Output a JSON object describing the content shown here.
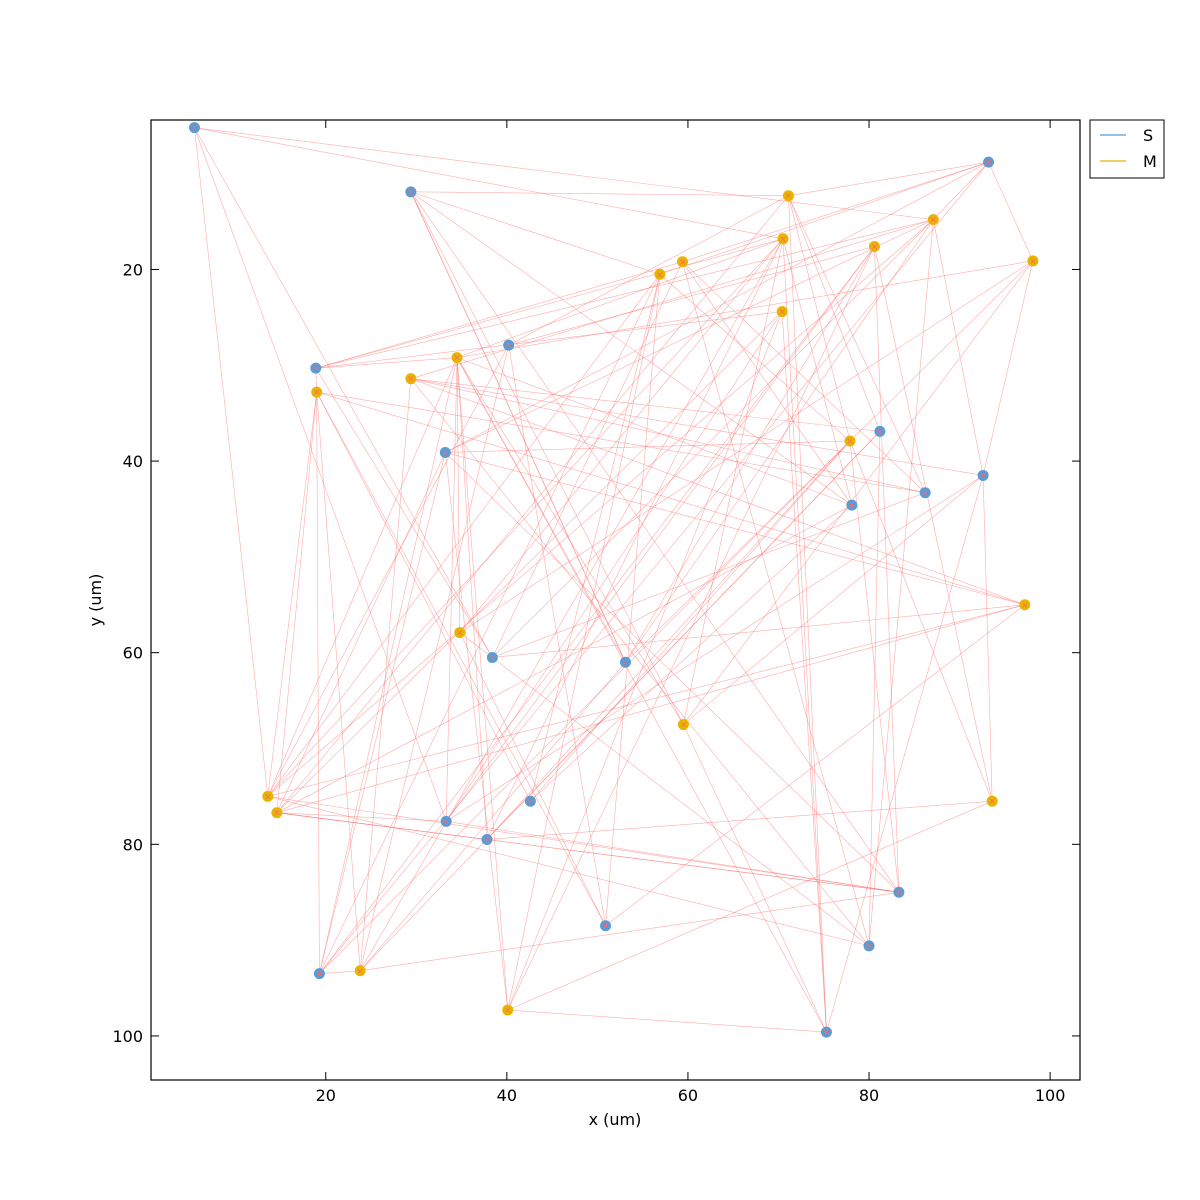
{
  "chart_data": {
    "type": "scatter",
    "title": "",
    "xlabel": "x (um)",
    "ylabel": "y (um)",
    "xlim": [
      0.7,
      103.3
    ],
    "ylim": [
      4.4,
      104.6
    ],
    "y_inverted": true,
    "x_ticks": [
      20,
      40,
      60,
      80,
      100
    ],
    "y_ticks": [
      20,
      40,
      60,
      80,
      100
    ],
    "grid": false,
    "legend_position": "outside-top-right",
    "series": [
      {
        "name": "S",
        "color": "#5b9bd5",
        "points": [
          {
            "id": "s1",
            "x": 5.5,
            "y": 5.2
          },
          {
            "id": "s2",
            "x": 29.4,
            "y": 11.9
          },
          {
            "id": "s3",
            "x": 93.2,
            "y": 8.8
          },
          {
            "id": "s4",
            "x": 18.9,
            "y": 30.3
          },
          {
            "id": "s5",
            "x": 40.2,
            "y": 27.9
          },
          {
            "id": "s6",
            "x": 33.2,
            "y": 39.1
          },
          {
            "id": "s7",
            "x": 81.2,
            "y": 36.9
          },
          {
            "id": "s8",
            "x": 78.1,
            "y": 44.6
          },
          {
            "id": "s9",
            "x": 86.2,
            "y": 43.3
          },
          {
            "id": "s10",
            "x": 92.6,
            "y": 41.5
          },
          {
            "id": "s11",
            "x": 38.4,
            "y": 60.5
          },
          {
            "id": "s12",
            "x": 53.1,
            "y": 61.0
          },
          {
            "id": "s13",
            "x": 42.6,
            "y": 75.5
          },
          {
            "id": "s14",
            "x": 33.3,
            "y": 77.6
          },
          {
            "id": "s15",
            "x": 37.8,
            "y": 79.5
          },
          {
            "id": "s16",
            "x": 83.3,
            "y": 85.0
          },
          {
            "id": "s17",
            "x": 50.9,
            "y": 88.5
          },
          {
            "id": "s18",
            "x": 80.0,
            "y": 90.6
          },
          {
            "id": "s19",
            "x": 19.3,
            "y": 93.5
          },
          {
            "id": "s20",
            "x": 75.3,
            "y": 99.6
          }
        ]
      },
      {
        "name": "M",
        "color": "#e8b400",
        "points": [
          {
            "id": "m1",
            "x": 71.1,
            "y": 12.3
          },
          {
            "id": "m2",
            "x": 87.1,
            "y": 14.8
          },
          {
            "id": "m3",
            "x": 70.5,
            "y": 16.8
          },
          {
            "id": "m4",
            "x": 80.6,
            "y": 17.6
          },
          {
            "id": "m5",
            "x": 98.1,
            "y": 19.1
          },
          {
            "id": "m6",
            "x": 59.4,
            "y": 19.2
          },
          {
            "id": "m7",
            "x": 56.9,
            "y": 20.5
          },
          {
            "id": "m8",
            "x": 70.4,
            "y": 24.4
          },
          {
            "id": "m9",
            "x": 34.5,
            "y": 29.2
          },
          {
            "id": "m10",
            "x": 29.4,
            "y": 31.4
          },
          {
            "id": "m11",
            "x": 19.0,
            "y": 32.8
          },
          {
            "id": "m12",
            "x": 77.9,
            "y": 37.9
          },
          {
            "id": "m13",
            "x": 97.2,
            "y": 55.0
          },
          {
            "id": "m14",
            "x": 34.8,
            "y": 57.9
          },
          {
            "id": "m15",
            "x": 59.5,
            "y": 67.5
          },
          {
            "id": "m16",
            "x": 13.6,
            "y": 75.0
          },
          {
            "id": "m17",
            "x": 14.6,
            "y": 76.7
          },
          {
            "id": "m18",
            "x": 93.6,
            "y": 75.5
          },
          {
            "id": "m19",
            "x": 23.8,
            "y": 93.2
          },
          {
            "id": "m20",
            "x": 40.1,
            "y": 97.3
          }
        ]
      }
    ],
    "connections": {
      "color": "#ff6666",
      "edges": [
        [
          "s1",
          "m3"
        ],
        [
          "s1",
          "s11"
        ],
        [
          "s1",
          "m16"
        ],
        [
          "s1",
          "s14"
        ],
        [
          "s1",
          "m2"
        ],
        [
          "s2",
          "m7"
        ],
        [
          "s2",
          "s8"
        ],
        [
          "s2",
          "m15"
        ],
        [
          "s2",
          "s16"
        ],
        [
          "s2",
          "s12"
        ],
        [
          "s2",
          "m1"
        ],
        [
          "s3",
          "m2"
        ],
        [
          "s3",
          "m7"
        ],
        [
          "s3",
          "s6"
        ],
        [
          "s3",
          "s19"
        ],
        [
          "s3",
          "m6"
        ],
        [
          "s3",
          "m1"
        ],
        [
          "s3",
          "m5"
        ],
        [
          "s4",
          "m2"
        ],
        [
          "s4",
          "m6"
        ],
        [
          "s4",
          "m8"
        ],
        [
          "s4",
          "m9"
        ],
        [
          "s4",
          "m3"
        ],
        [
          "s4",
          "m11"
        ],
        [
          "s5",
          "m4"
        ],
        [
          "s5",
          "m1"
        ],
        [
          "s5",
          "s17"
        ],
        [
          "s5",
          "m16"
        ],
        [
          "s5",
          "m19"
        ],
        [
          "s6",
          "m13"
        ],
        [
          "s6",
          "m12"
        ],
        [
          "s6",
          "s19"
        ],
        [
          "s6",
          "m2"
        ],
        [
          "s6",
          "m20"
        ],
        [
          "s6",
          "m17"
        ],
        [
          "s7",
          "m19"
        ],
        [
          "s7",
          "s18"
        ],
        [
          "s7",
          "m1"
        ],
        [
          "s7",
          "s15"
        ],
        [
          "s7",
          "m10"
        ],
        [
          "s8",
          "m17"
        ],
        [
          "s8",
          "m9"
        ],
        [
          "s8",
          "s13"
        ],
        [
          "s8",
          "m6"
        ],
        [
          "s8",
          "m3"
        ],
        [
          "s9",
          "m1"
        ],
        [
          "s9",
          "m6"
        ],
        [
          "s9",
          "s11"
        ],
        [
          "s9",
          "m11"
        ],
        [
          "s9",
          "m10"
        ],
        [
          "s10",
          "m5"
        ],
        [
          "s10",
          "m10"
        ],
        [
          "s10",
          "m15"
        ],
        [
          "s10",
          "m18"
        ],
        [
          "s10",
          "s14"
        ],
        [
          "s10",
          "m2"
        ],
        [
          "s11",
          "m6"
        ],
        [
          "s11",
          "m2"
        ],
        [
          "s11",
          "m13"
        ],
        [
          "s11",
          "s4"
        ],
        [
          "s12",
          "m2"
        ],
        [
          "s12",
          "s2"
        ],
        [
          "s12",
          "m5"
        ],
        [
          "s12",
          "m19"
        ],
        [
          "s12",
          "m4"
        ],
        [
          "s12",
          "m9"
        ],
        [
          "s13",
          "m7"
        ],
        [
          "s13",
          "m11"
        ],
        [
          "s13",
          "m12"
        ],
        [
          "s14",
          "m9"
        ],
        [
          "s14",
          "m8"
        ],
        [
          "s14",
          "s16"
        ],
        [
          "s14",
          "m17"
        ],
        [
          "s14",
          "m4"
        ],
        [
          "s15",
          "m3"
        ],
        [
          "s15",
          "m17"
        ],
        [
          "s15",
          "m12"
        ],
        [
          "s15",
          "m9"
        ],
        [
          "s15",
          "m18"
        ],
        [
          "s16",
          "m12"
        ],
        [
          "s16",
          "m4"
        ],
        [
          "s16",
          "s6"
        ],
        [
          "s16",
          "m17"
        ],
        [
          "s16",
          "m16"
        ],
        [
          "s17",
          "m13"
        ],
        [
          "s17",
          "m7"
        ],
        [
          "s17",
          "m11"
        ],
        [
          "s17",
          "m14"
        ],
        [
          "s18",
          "m2"
        ],
        [
          "s18",
          "m16"
        ],
        [
          "s18",
          "m6"
        ],
        [
          "s18",
          "m14"
        ],
        [
          "s18",
          "m10"
        ],
        [
          "s19",
          "m11"
        ],
        [
          "s19",
          "m7"
        ],
        [
          "s19",
          "m4"
        ],
        [
          "s19",
          "m12"
        ],
        [
          "s19",
          "m19"
        ],
        [
          "s19",
          "m9"
        ],
        [
          "s20",
          "m1"
        ],
        [
          "s20",
          "m8"
        ],
        [
          "s20",
          "m3"
        ],
        [
          "s20",
          "m20"
        ],
        [
          "s20",
          "s10"
        ],
        [
          "s20",
          "m15"
        ],
        [
          "s20",
          "m9"
        ],
        [
          "m16",
          "m3"
        ],
        [
          "m16",
          "m2"
        ],
        [
          "m16",
          "m7"
        ],
        [
          "m16",
          "m11"
        ],
        [
          "m16",
          "m13"
        ],
        [
          "m16",
          "m9"
        ],
        [
          "m17",
          "m1"
        ],
        [
          "m17",
          "m8"
        ],
        [
          "m17",
          "m13"
        ],
        [
          "m17",
          "s16"
        ],
        [
          "m17",
          "m11"
        ],
        [
          "m20",
          "m4"
        ],
        [
          "m20",
          "m18"
        ],
        [
          "m20",
          "m8"
        ],
        [
          "m20",
          "m7"
        ],
        [
          "m20",
          "m9"
        ],
        [
          "m19",
          "m3"
        ],
        [
          "m19",
          "s16"
        ],
        [
          "m19",
          "m10"
        ],
        [
          "m19",
          "m11"
        ],
        [
          "m14",
          "m5"
        ],
        [
          "m14",
          "m9"
        ],
        [
          "m14",
          "m3"
        ],
        [
          "m15",
          "m5"
        ],
        [
          "m15",
          "m9"
        ],
        [
          "m15",
          "m3"
        ],
        [
          "m10",
          "m2"
        ],
        [
          "m10",
          "m13"
        ],
        [
          "m9",
          "m5"
        ],
        [
          "m9",
          "m3"
        ],
        [
          "m11",
          "m13"
        ],
        [
          "m18",
          "m12"
        ],
        [
          "m18",
          "m4"
        ],
        [
          "m12",
          "m7"
        ],
        [
          "m12",
          "m1"
        ]
      ]
    }
  }
}
